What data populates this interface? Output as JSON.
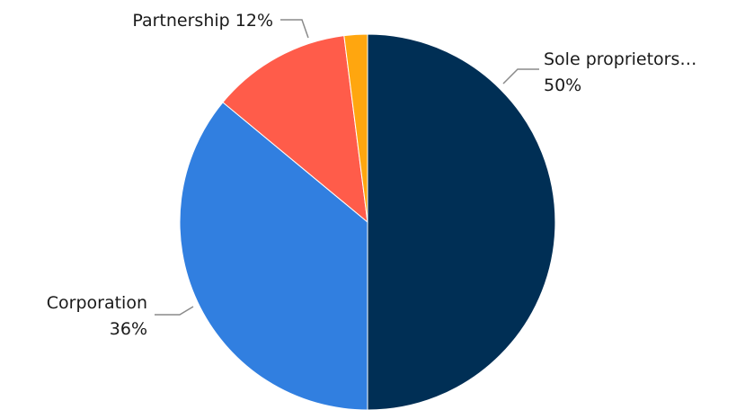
{
  "chart_data": {
    "type": "pie",
    "start_angle_deg": 0,
    "direction": "clockwise",
    "slices": [
      {
        "label": "Sole proprietors…",
        "value_label": "50%",
        "value": 50,
        "color": "#002f55"
      },
      {
        "label": "Corporation",
        "value_label": "36%",
        "value": 36,
        "color": "#317fe0"
      },
      {
        "label": "Partnership",
        "value_label": "12%",
        "value": 12,
        "color": "#ff5c4a"
      },
      {
        "label": "",
        "value_label": "",
        "value": 2,
        "color": "#ffa60f"
      }
    ]
  }
}
